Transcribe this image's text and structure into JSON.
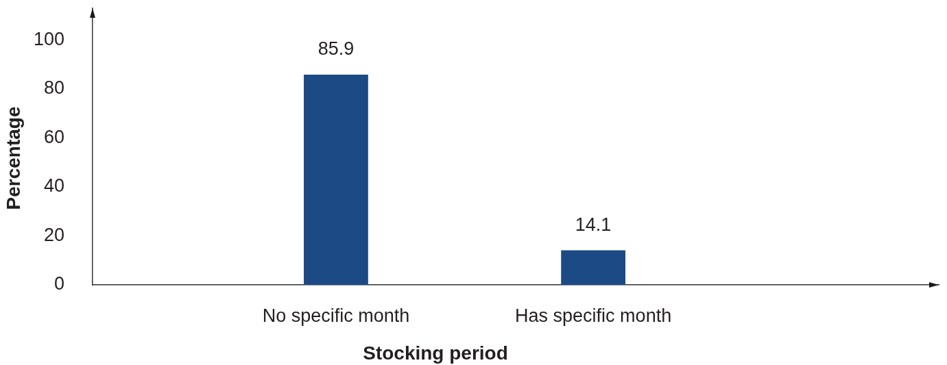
{
  "chart_data": {
    "type": "bar",
    "xlabel": "Stocking period",
    "ylabel": "Percentage",
    "categories": [
      "No specific month",
      "Has specific month"
    ],
    "values": [
      85.9,
      14.1
    ],
    "color": "#1c4a84",
    "ylim": [
      0,
      113
    ],
    "yticks": [
      0,
      20,
      40,
      60,
      80,
      100
    ],
    "grid": false,
    "legend": false,
    "data_labels": true
  }
}
